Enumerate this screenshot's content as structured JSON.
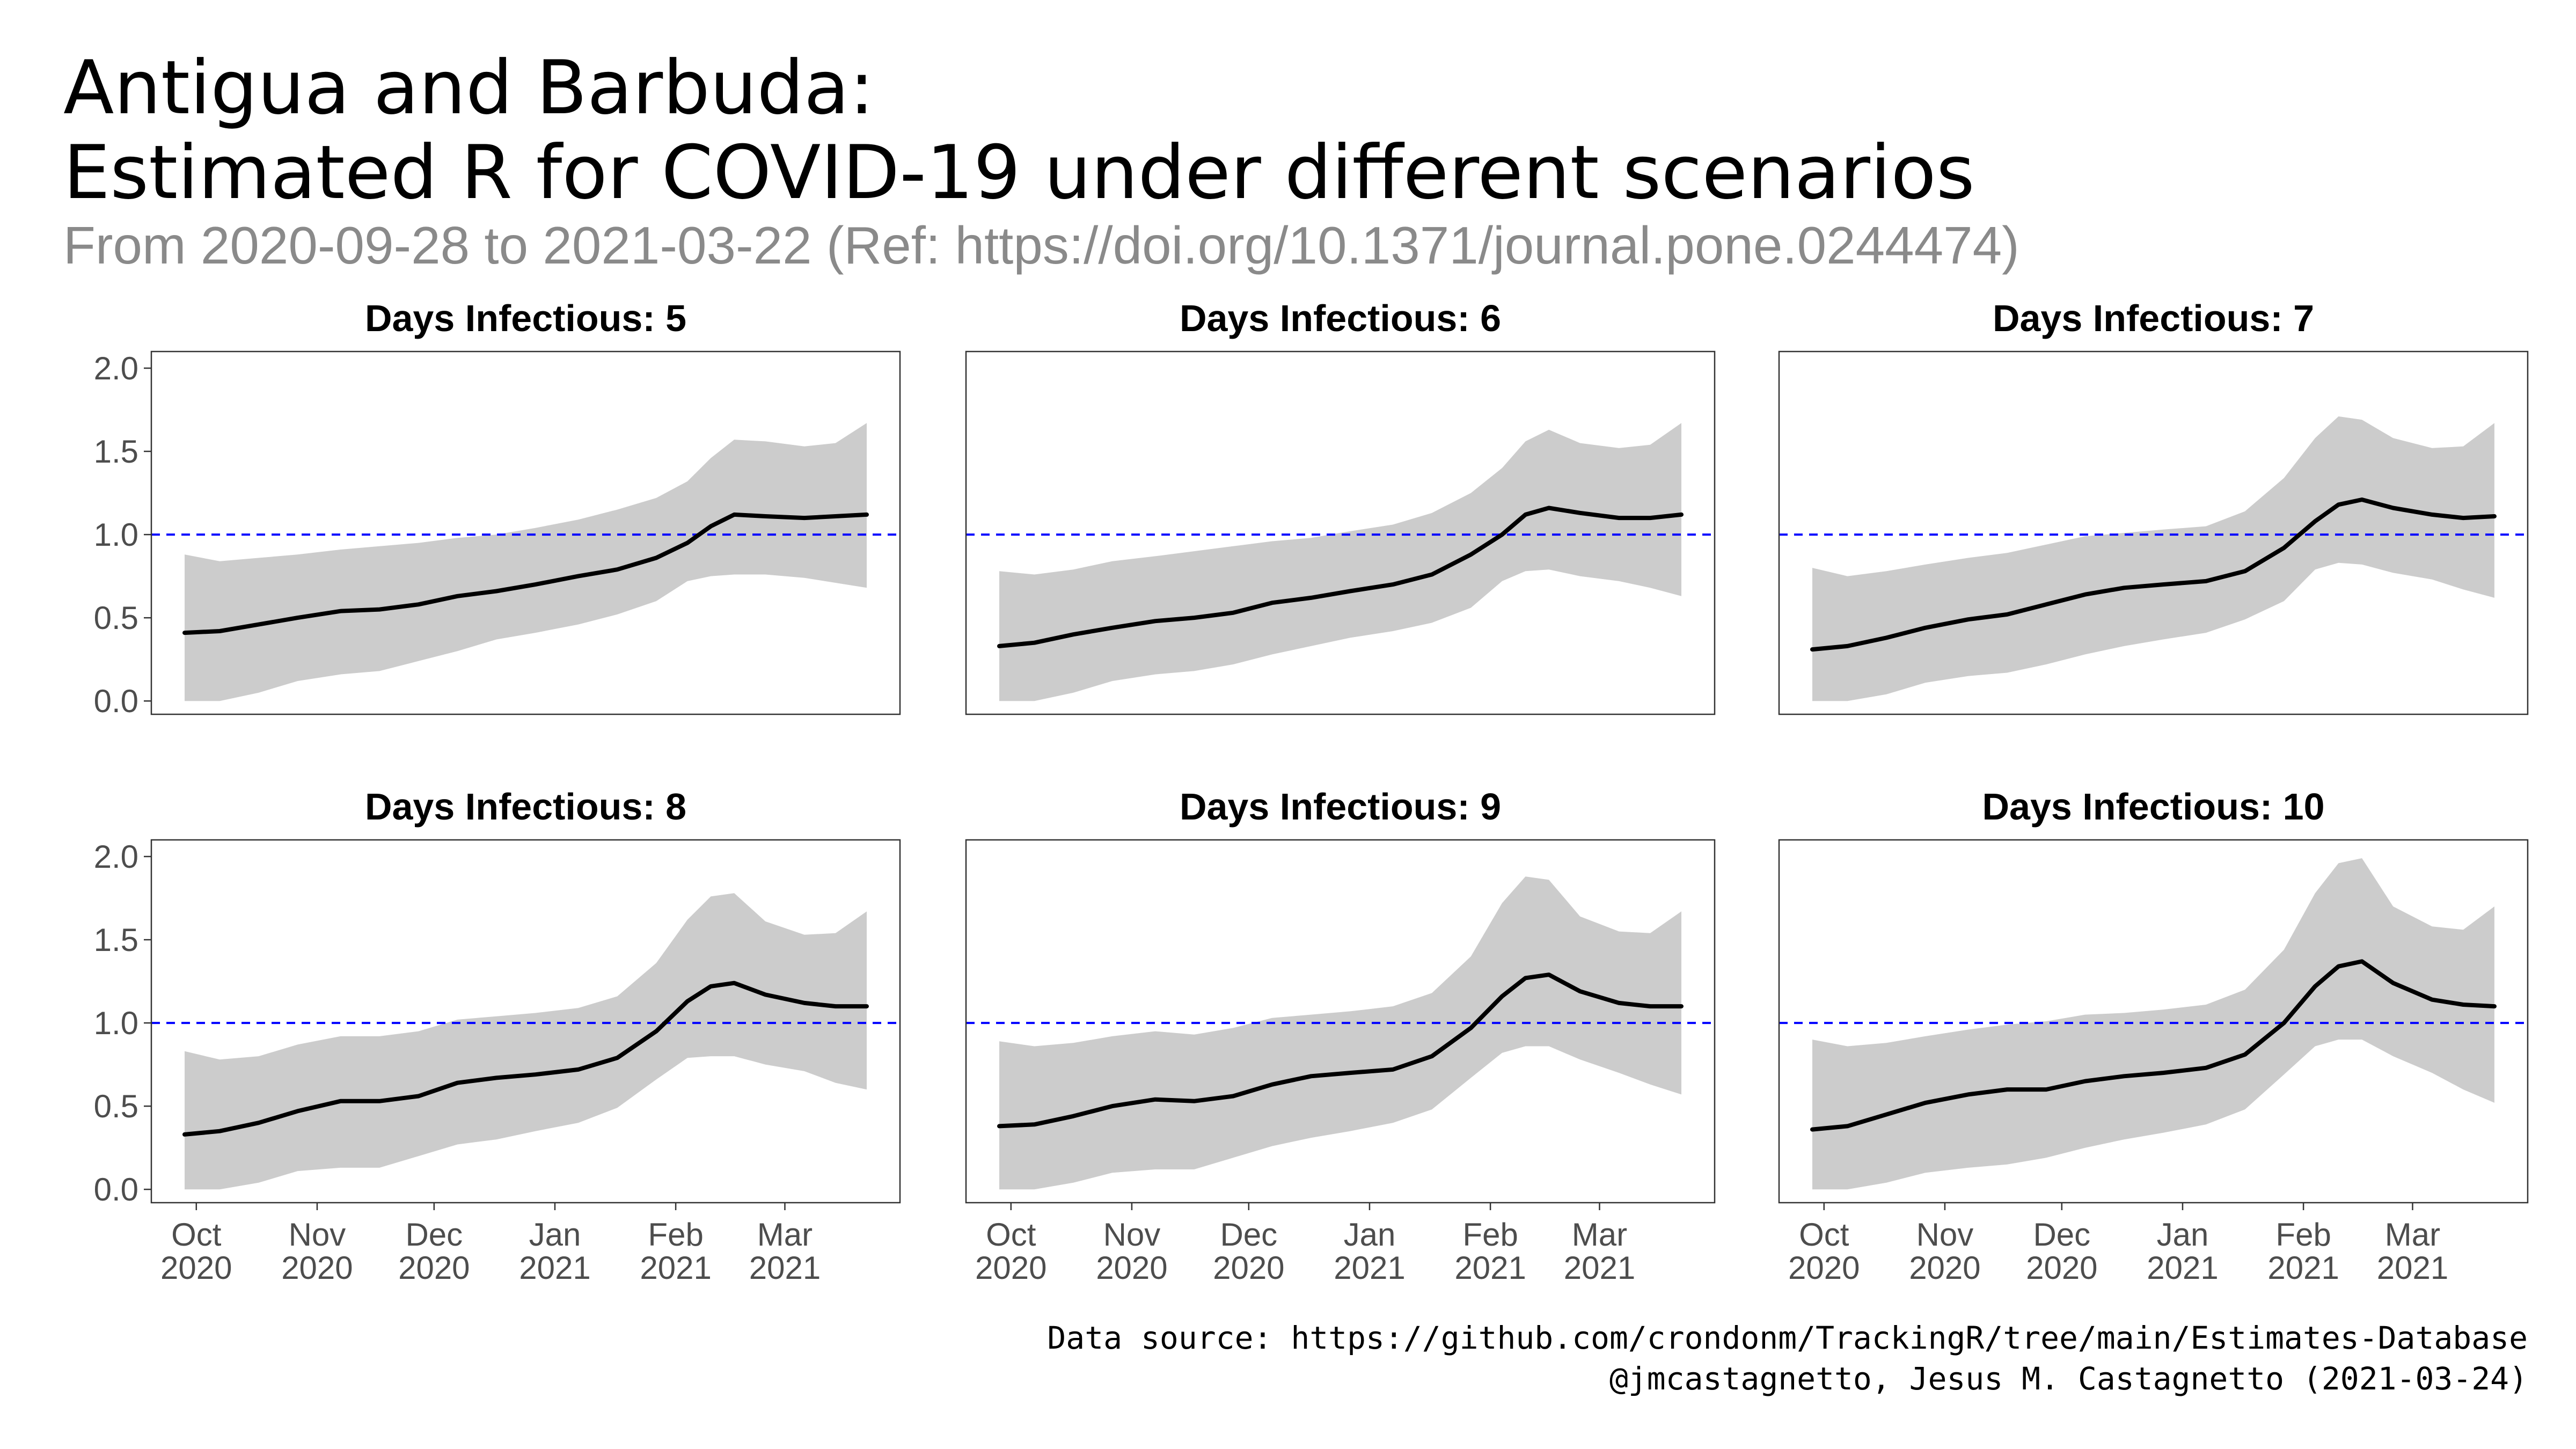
{
  "header": {
    "title_line1": "Antigua and Barbuda:",
    "title_line2": "Estimated R for COVID-19 under different scenarios",
    "subtitle": "From 2020-09-28 to 2021-03-22 (Ref: https://doi.org/10.1371/journal.pone.0244474)"
  },
  "footer": {
    "source": "Data source: https://github.com/crondonm/TrackingR/tree/main/Estimates-Database",
    "credit": "@jmcastagnetto, Jesus M. Castagnetto (2021-03-24)"
  },
  "colors": {
    "ribbon": "#cccccc",
    "line": "#000000",
    "reference_line": "#0000ff",
    "panel_border": "#333333"
  },
  "chart_data": {
    "type": "area",
    "facet_by": "Days Infectious",
    "x_range": [
      "2020-09-28",
      "2021-03-22"
    ],
    "ylim": [
      -0.08,
      2.1
    ],
    "y_ticks": [
      0.0,
      0.5,
      1.0,
      1.5,
      2.0
    ],
    "y_tick_labels": [
      "0.0",
      "0.5",
      "1.0",
      "1.5",
      "2.0"
    ],
    "x_ticks": [
      {
        "date": "2020-10-01",
        "label": [
          "Oct",
          "2020"
        ]
      },
      {
        "date": "2020-11-01",
        "label": [
          "Nov",
          "2020"
        ]
      },
      {
        "date": "2020-12-01",
        "label": [
          "Dec",
          "2020"
        ]
      },
      {
        "date": "2021-01-01",
        "label": [
          "Jan",
          "2021"
        ]
      },
      {
        "date": "2021-02-01",
        "label": [
          "Feb",
          "2021"
        ]
      },
      {
        "date": "2021-03-01",
        "label": [
          "Mar",
          "2021"
        ]
      }
    ],
    "reference_line": {
      "y": 1.0,
      "style": "dashed"
    },
    "grid": false,
    "x": [
      "2020-09-28",
      "2020-10-07",
      "2020-10-17",
      "2020-10-27",
      "2020-11-07",
      "2020-11-17",
      "2020-11-27",
      "2020-12-07",
      "2020-12-17",
      "2020-12-27",
      "2021-01-07",
      "2021-01-17",
      "2021-01-27",
      "2021-02-04",
      "2021-02-10",
      "2021-02-16",
      "2021-02-24",
      "2021-03-06",
      "2021-03-14",
      "2021-03-22"
    ],
    "panels": [
      {
        "title": "Days Infectious: 5",
        "r": [
          0.41,
          0.42,
          0.46,
          0.5,
          0.54,
          0.55,
          0.58,
          0.63,
          0.66,
          0.7,
          0.75,
          0.79,
          0.86,
          0.95,
          1.05,
          1.12,
          1.11,
          1.1,
          1.11,
          1.12
        ],
        "lower": [
          0.0,
          0.0,
          0.05,
          0.12,
          0.16,
          0.18,
          0.24,
          0.3,
          0.37,
          0.41,
          0.46,
          0.52,
          0.6,
          0.72,
          0.75,
          0.76,
          0.76,
          0.74,
          0.71,
          0.68
        ],
        "upper": [
          0.88,
          0.84,
          0.86,
          0.88,
          0.91,
          0.93,
          0.95,
          0.98,
          1.0,
          1.04,
          1.09,
          1.15,
          1.22,
          1.32,
          1.46,
          1.57,
          1.56,
          1.53,
          1.55,
          1.67
        ]
      },
      {
        "title": "Days Infectious: 6",
        "r": [
          0.33,
          0.35,
          0.4,
          0.44,
          0.48,
          0.5,
          0.53,
          0.59,
          0.62,
          0.66,
          0.7,
          0.76,
          0.88,
          1.0,
          1.12,
          1.16,
          1.13,
          1.1,
          1.1,
          1.12
        ],
        "lower": [
          0.0,
          0.0,
          0.05,
          0.12,
          0.16,
          0.18,
          0.22,
          0.28,
          0.33,
          0.38,
          0.42,
          0.47,
          0.56,
          0.72,
          0.78,
          0.79,
          0.75,
          0.72,
          0.68,
          0.63
        ],
        "upper": [
          0.78,
          0.76,
          0.79,
          0.84,
          0.87,
          0.9,
          0.93,
          0.96,
          0.98,
          1.02,
          1.06,
          1.13,
          1.25,
          1.4,
          1.56,
          1.63,
          1.55,
          1.52,
          1.54,
          1.67
        ]
      },
      {
        "title": "Days Infectious: 7",
        "r": [
          0.31,
          0.33,
          0.38,
          0.44,
          0.49,
          0.52,
          0.58,
          0.64,
          0.68,
          0.7,
          0.72,
          0.78,
          0.92,
          1.08,
          1.18,
          1.21,
          1.16,
          1.12,
          1.1,
          1.11
        ],
        "lower": [
          0.0,
          0.0,
          0.04,
          0.11,
          0.15,
          0.17,
          0.22,
          0.28,
          0.33,
          0.37,
          0.41,
          0.49,
          0.6,
          0.79,
          0.83,
          0.82,
          0.77,
          0.73,
          0.67,
          0.62
        ],
        "upper": [
          0.8,
          0.75,
          0.78,
          0.82,
          0.86,
          0.89,
          0.94,
          0.99,
          1.01,
          1.03,
          1.05,
          1.14,
          1.34,
          1.58,
          1.71,
          1.69,
          1.58,
          1.52,
          1.53,
          1.67
        ]
      },
      {
        "title": "Days Infectious: 8",
        "r": [
          0.33,
          0.35,
          0.4,
          0.47,
          0.53,
          0.53,
          0.56,
          0.64,
          0.67,
          0.69,
          0.72,
          0.79,
          0.95,
          1.13,
          1.22,
          1.24,
          1.17,
          1.12,
          1.1,
          1.1
        ],
        "lower": [
          0.0,
          0.0,
          0.04,
          0.11,
          0.13,
          0.13,
          0.2,
          0.27,
          0.3,
          0.35,
          0.4,
          0.49,
          0.66,
          0.79,
          0.8,
          0.8,
          0.75,
          0.71,
          0.64,
          0.6
        ],
        "upper": [
          0.83,
          0.78,
          0.8,
          0.87,
          0.92,
          0.92,
          0.95,
          1.02,
          1.04,
          1.06,
          1.09,
          1.16,
          1.36,
          1.62,
          1.76,
          1.78,
          1.61,
          1.53,
          1.54,
          1.67
        ]
      },
      {
        "title": "Days Infectious: 9",
        "r": [
          0.38,
          0.39,
          0.44,
          0.5,
          0.54,
          0.53,
          0.56,
          0.63,
          0.68,
          0.7,
          0.72,
          0.8,
          0.97,
          1.16,
          1.27,
          1.29,
          1.19,
          1.12,
          1.1,
          1.1
        ],
        "lower": [
          0.0,
          0.0,
          0.04,
          0.1,
          0.12,
          0.12,
          0.19,
          0.26,
          0.31,
          0.35,
          0.4,
          0.48,
          0.67,
          0.82,
          0.86,
          0.86,
          0.78,
          0.7,
          0.63,
          0.57
        ],
        "upper": [
          0.89,
          0.86,
          0.88,
          0.92,
          0.95,
          0.93,
          0.97,
          1.03,
          1.05,
          1.07,
          1.1,
          1.18,
          1.4,
          1.72,
          1.88,
          1.86,
          1.64,
          1.55,
          1.54,
          1.67
        ]
      },
      {
        "title": "Days Infectious: 10",
        "r": [
          0.36,
          0.38,
          0.45,
          0.52,
          0.57,
          0.6,
          0.6,
          0.65,
          0.68,
          0.7,
          0.73,
          0.81,
          1.0,
          1.22,
          1.34,
          1.37,
          1.24,
          1.14,
          1.11,
          1.1
        ],
        "lower": [
          0.0,
          0.0,
          0.04,
          0.1,
          0.13,
          0.15,
          0.19,
          0.25,
          0.3,
          0.34,
          0.39,
          0.48,
          0.69,
          0.86,
          0.9,
          0.9,
          0.8,
          0.7,
          0.6,
          0.52
        ],
        "upper": [
          0.9,
          0.86,
          0.88,
          0.92,
          0.96,
          0.99,
          1.01,
          1.05,
          1.06,
          1.08,
          1.11,
          1.2,
          1.44,
          1.78,
          1.96,
          1.99,
          1.7,
          1.58,
          1.56,
          1.7
        ]
      }
    ]
  }
}
